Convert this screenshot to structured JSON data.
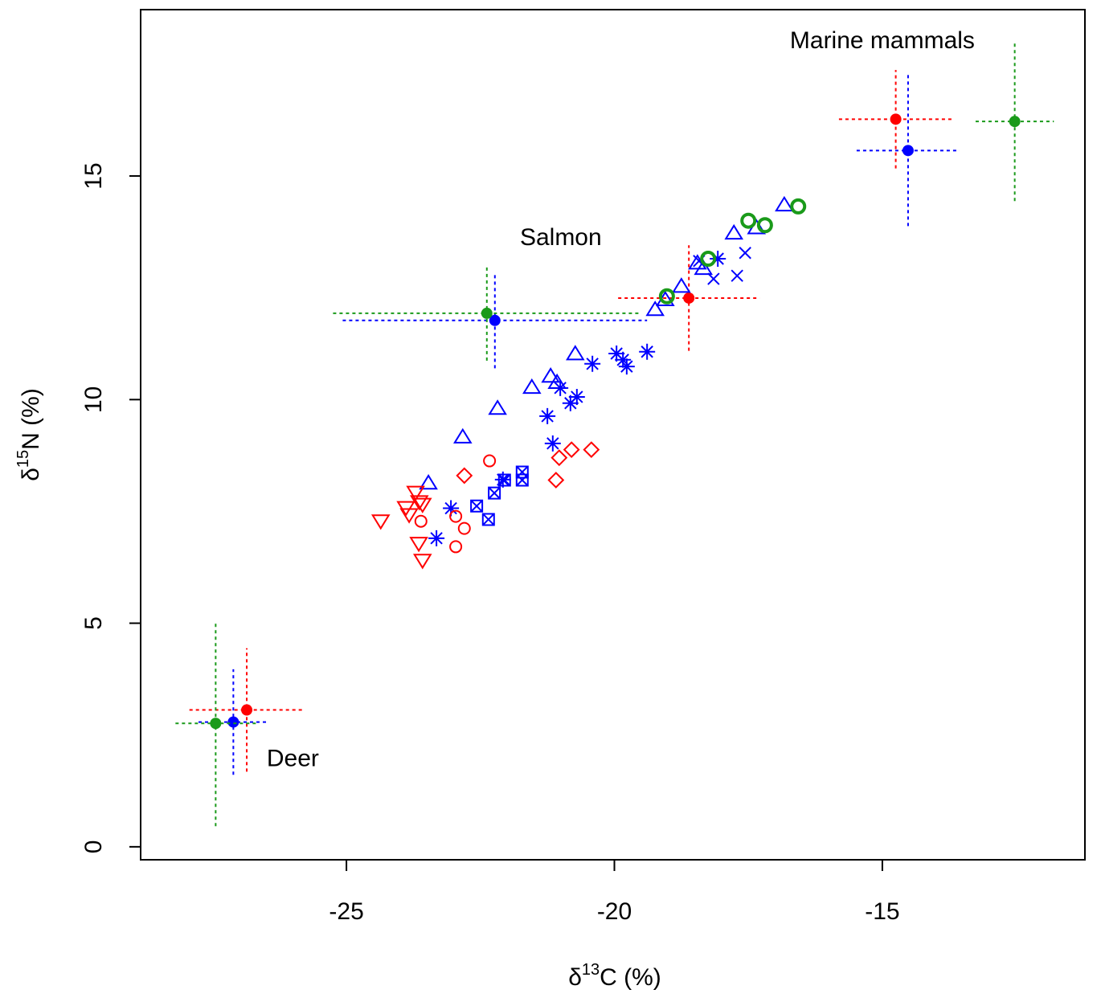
{
  "chart_data": {
    "type": "scatter",
    "x_label": {
      "prefix": "δ",
      "superscript": "13",
      "suffix": "C (%)"
    },
    "y_label": {
      "prefix": "δ",
      "superscript": "15",
      "suffix": "N (%)"
    },
    "xlim": [
      -28.84,
      -11.22
    ],
    "ylim": [
      -0.29,
      18.72
    ],
    "xticks": [
      -25,
      -20,
      -15
    ],
    "yticks": [
      0,
      5,
      10,
      15
    ],
    "grid": false,
    "annotations": [
      {
        "text": "Marine mammals",
        "x": -15,
        "y": 18
      },
      {
        "text": "Salmon",
        "x": -21.0,
        "y": 13.6
      },
      {
        "text": "Deer",
        "x": -26.0,
        "y": 1.95
      }
    ],
    "series": [
      {
        "marker": "dot",
        "color": "#ff0000",
        "x": [
          -26.86,
          -18.61,
          -14.75
        ],
        "values": [
          3.06,
          12.27,
          16.27
        ],
        "xerr": [
          1.07,
          1.32,
          1.06
        ],
        "yerr": [
          1.38,
          1.18,
          1.1
        ]
      },
      {
        "marker": "dot",
        "color": "#0000ff",
        "x": [
          -27.11,
          -22.23,
          -14.52
        ],
        "values": [
          2.79,
          11.77,
          15.57
        ],
        "xerr": [
          0.65,
          2.84,
          0.96
        ],
        "yerr": [
          1.18,
          1.07,
          1.69
        ]
      },
      {
        "marker": "dot",
        "color": "#1a9a1a",
        "x": [
          -27.44,
          -22.38,
          -12.53
        ],
        "values": [
          2.76,
          11.93,
          16.22
        ],
        "xerr": [
          0.75,
          2.87,
          0.73
        ],
        "yerr": [
          2.3,
          1.06,
          1.78
        ]
      },
      {
        "marker": "triangle-up",
        "color": "#0000ff",
        "x": [
          -23.47,
          -22.83,
          -22.18,
          -21.54,
          -21.19,
          -21.07,
          -20.73,
          -19.24,
          -19.05,
          -18.75,
          -18.45,
          -18.34,
          -17.77,
          -17.35,
          -16.83
        ],
        "values": [
          8.12,
          9.15,
          9.79,
          10.26,
          10.51,
          10.37,
          11.01,
          12.0,
          12.22,
          12.52,
          13.04,
          12.92,
          13.71,
          13.83,
          14.34
        ]
      },
      {
        "marker": "asterisk",
        "color": "#0000ff",
        "x": [
          -23.32,
          -23.05,
          -22.08,
          -21.25,
          -21.15,
          -21.01,
          -20.82,
          -20.7,
          -20.41,
          -19.96,
          -19.84,
          -19.77,
          -19.39,
          -18.07
        ],
        "values": [
          6.9,
          7.57,
          8.21,
          9.63,
          9.02,
          10.26,
          9.92,
          10.06,
          10.8,
          11.03,
          10.89,
          10.74,
          11.07,
          13.15
        ]
      },
      {
        "marker": "cross",
        "color": "#0000ff",
        "x": [
          -18.42,
          -18.15,
          -17.71,
          -17.56
        ],
        "values": [
          13.1,
          12.7,
          12.77,
          13.28
        ]
      },
      {
        "marker": "boxed-cross",
        "color": "#0000ff",
        "x": [
          -22.57,
          -22.35,
          -22.24,
          -22.05,
          -21.72,
          -21.72
        ],
        "values": [
          7.62,
          7.32,
          7.91,
          8.2,
          8.38,
          8.2
        ]
      },
      {
        "marker": "circle",
        "color": "#ff0000",
        "x": [
          -22.33,
          -23.61,
          -22.96,
          -22.8,
          -22.96
        ],
        "values": [
          8.63,
          7.28,
          7.39,
          7.12,
          6.71
        ]
      },
      {
        "marker": "diamond",
        "color": "#ff0000",
        "x": [
          -22.8,
          -21.09,
          -21.03,
          -20.8,
          -20.43
        ],
        "values": [
          8.3,
          8.2,
          8.7,
          8.88,
          8.88
        ]
      },
      {
        "marker": "triangle-down",
        "color": "#ff0000",
        "x": [
          -24.36,
          -23.89,
          -23.83,
          -23.71,
          -23.64,
          -23.58,
          -23.65,
          -23.58
        ],
        "values": [
          7.3,
          7.6,
          7.44,
          7.94,
          7.73,
          7.67,
          6.8,
          6.42
        ]
      },
      {
        "marker": "thick-circle",
        "color": "#1a9a1a",
        "x": [
          -19.02,
          -18.25,
          -17.5,
          -17.19,
          -16.57
        ],
        "values": [
          12.31,
          13.15,
          14.0,
          13.9,
          14.32
        ]
      }
    ]
  }
}
